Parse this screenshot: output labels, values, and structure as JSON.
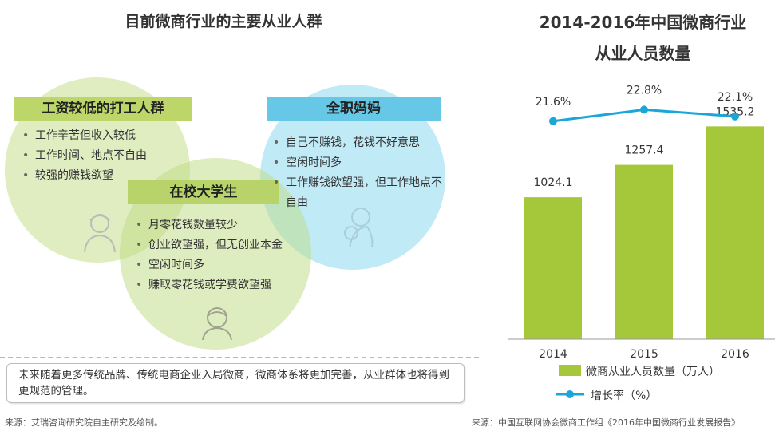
{
  "left": {
    "title": "目前微商行业的主要从业人群",
    "groups": [
      {
        "title": "工资较低的打工人群",
        "items": [
          "工作辛苦但收入较低",
          "工作时间、地点不自由",
          "较强的赚钱欲望"
        ]
      },
      {
        "title": "全职妈妈",
        "items": [
          "自己不赚钱，花钱不好意思",
          "空闲时间多",
          "工作赚钱欲望强，但工作地点不自由"
        ]
      },
      {
        "title": "在校大学生",
        "items": [
          "月零花钱数量较少",
          "创业欲望强，但无创业本金",
          "空闲时间多",
          "赚取零花钱或学费欲望强"
        ]
      }
    ],
    "note": "未来随着更多传统品牌、传统电商企业入局微商，微商体系将更加完善，从业群体也将得到更规范的管理。",
    "source": "来源：艾瑞咨询研究院自主研究及绘制。"
  },
  "right": {
    "title_line1": "2014-2016年中国微商行业",
    "title_line2": "从业人员数量",
    "source": "来源：中国互联网协会微商工作组《2016年中国微商行业发展报告》"
  },
  "colors": {
    "bar": "#a5c73a",
    "line": "#1aa7d8",
    "circle_green": "#dbe8b4",
    "circle_blue": "#bfe8f3",
    "banner_green": "#bcd66a",
    "banner_blue": "#66c8e6"
  },
  "chart_data": {
    "type": "bar",
    "categories": [
      "2014",
      "2015",
      "2016"
    ],
    "series": [
      {
        "name": "微商从业人员数量（万人）",
        "type": "bar",
        "values": [
          1024.1,
          1257.4,
          1535.2
        ]
      },
      {
        "name": "增长率（%）",
        "type": "line",
        "values": [
          21.6,
          22.8,
          22.1
        ]
      }
    ],
    "bar_labels": [
      "1024.1",
      "1257.4",
      "1535.2"
    ],
    "line_labels": [
      "21.6%",
      "22.8%",
      "22.1%"
    ],
    "ylim": [
      0,
      1900
    ],
    "grid": false,
    "legend_position": "bottom"
  }
}
